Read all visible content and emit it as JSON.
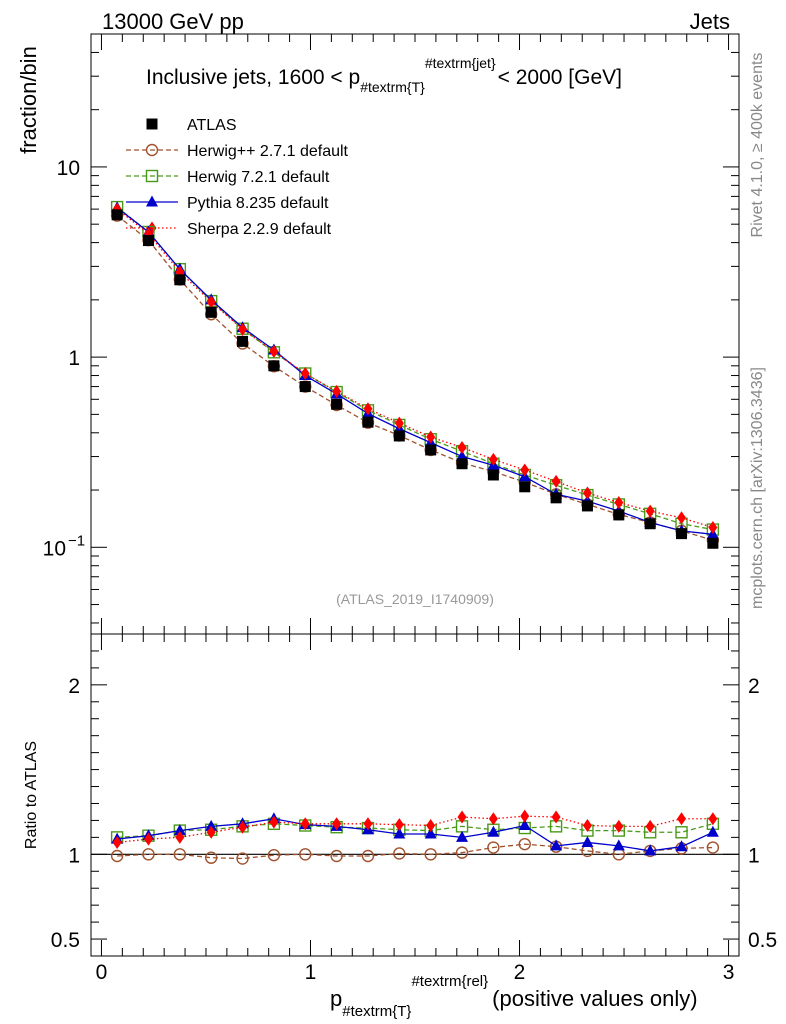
{
  "header": {
    "left": "13000 GeV pp",
    "right": "Jets"
  },
  "side": {
    "rivet": "Rivet 4.1.0, ≥ 400k events",
    "mcplots": "mcplots.cern.ch [arXiv:1306.3436]"
  },
  "chart_data": [
    {
      "type": "line",
      "title": "Inclusive jets, 1600 < p#textrm{T}#textrm{jet} < 2000 [GeV]",
      "title_parts": {
        "prefix": "Inclusive jets, 1600 < p",
        "sub": "#textrm{T}",
        "sup": "#textrm{jet}",
        "suffix": "< 2000 [GeV]"
      },
      "ylabel": "fraction/bin",
      "yscale": "log",
      "ylim": [
        0.035,
        50
      ],
      "xlim": [
        -0.05,
        3.05
      ],
      "y_ticklabels": [
        "10",
        "1",
        "10"
      ],
      "y_tick_exponent": "−1",
      "watermark": "(ATLAS_2019_I1740909)",
      "x": [
        0.075,
        0.225,
        0.375,
        0.525,
        0.675,
        0.825,
        0.975,
        1.125,
        1.275,
        1.425,
        1.575,
        1.725,
        1.875,
        2.025,
        2.175,
        2.325,
        2.475,
        2.625,
        2.775,
        2.925
      ],
      "series": [
        {
          "name": "ATLAS",
          "color": "#000000",
          "marker": "square-filled",
          "values": [
            5.6,
            4.1,
            2.55,
            1.72,
            1.21,
            0.9,
            0.7,
            0.565,
            0.455,
            0.385,
            0.325,
            0.275,
            0.24,
            0.208,
            0.182,
            0.165,
            0.148,
            0.133,
            0.118,
            0.105
          ]
        },
        {
          "name": "Herwig++ 2.7.1 default",
          "color": "#a0522d",
          "marker": "circle-open",
          "dash": "5,3",
          "values": [
            5.55,
            4.12,
            2.56,
            1.68,
            1.18,
            0.895,
            0.7,
            0.56,
            0.452,
            0.387,
            0.325,
            0.278,
            0.25,
            0.22,
            0.19,
            0.168,
            0.149,
            0.135,
            0.122,
            0.109
          ]
        },
        {
          "name": "Herwig 7.2.1 default",
          "color": "#4a9a1a",
          "marker": "square-open",
          "dash": "5,3",
          "values": [
            6.15,
            4.55,
            2.9,
            1.97,
            1.41,
            1.06,
            0.82,
            0.655,
            0.525,
            0.44,
            0.37,
            0.32,
            0.275,
            0.24,
            0.212,
            0.188,
            0.168,
            0.15,
            0.133,
            0.124
          ]
        },
        {
          "name": "Pythia 8.235 default",
          "color": "#0000cc",
          "marker": "triangle-filled",
          "values": [
            6.1,
            4.55,
            2.9,
            2.0,
            1.43,
            1.09,
            0.8,
            0.64,
            0.505,
            0.42,
            0.355,
            0.3,
            0.27,
            0.235,
            0.19,
            0.175,
            0.155,
            0.135,
            0.122,
            0.117
          ]
        },
        {
          "name": "Sherpa 2.2.9 default",
          "color": "#ff0000",
          "marker": "diamond-filled",
          "dash": "1.5,2.5",
          "values": [
            6.0,
            4.45,
            2.8,
            1.95,
            1.4,
            1.07,
            0.82,
            0.66,
            0.535,
            0.45,
            0.38,
            0.335,
            0.29,
            0.255,
            0.222,
            0.193,
            0.172,
            0.155,
            0.143,
            0.127
          ]
        }
      ]
    },
    {
      "type": "line",
      "ylabel": "Ratio to ATLAS",
      "ylim": [
        0.4,
        2.3
      ],
      "y_ticks": [
        0.5,
        1,
        2
      ],
      "y_ticklabels": [
        "0.5",
        "1",
        "2"
      ],
      "xlabel": "p#textrm{T}#textrm{rel} (positive values only)",
      "xlabel_parts": {
        "prefix": "p",
        "sub": "#textrm{T}",
        "sup": "#textrm{rel}",
        "suffix": "(positive values only)"
      },
      "x_ticks": [
        0,
        1,
        2,
        3
      ],
      "x_ticklabels": [
        "0",
        "1",
        "2",
        "3"
      ],
      "x": [
        0.075,
        0.225,
        0.375,
        0.525,
        0.675,
        0.825,
        0.975,
        1.125,
        1.275,
        1.425,
        1.575,
        1.725,
        1.875,
        2.025,
        2.175,
        2.325,
        2.475,
        2.625,
        2.775,
        2.925
      ],
      "series": [
        {
          "name": "Herwig++ 2.7.1 default",
          "color": "#a0522d",
          "marker": "circle-open",
          "dash": "5,3",
          "values": [
            0.99,
            1.0,
            1.0,
            0.98,
            0.975,
            0.995,
            1.0,
            0.99,
            0.99,
            1.005,
            1.0,
            1.01,
            1.04,
            1.06,
            1.045,
            1.02,
            1.0,
            1.02,
            1.035,
            1.04
          ]
        },
        {
          "name": "Herwig 7.2.1 default",
          "color": "#4a9a1a",
          "marker": "square-open",
          "dash": "5,3",
          "values": [
            1.1,
            1.11,
            1.14,
            1.145,
            1.165,
            1.18,
            1.17,
            1.16,
            1.155,
            1.145,
            1.14,
            1.165,
            1.145,
            1.155,
            1.165,
            1.14,
            1.14,
            1.13,
            1.13,
            1.18
          ]
        },
        {
          "name": "Pythia 8.235 default",
          "color": "#0000cc",
          "marker": "triangle-filled",
          "values": [
            1.09,
            1.11,
            1.14,
            1.165,
            1.18,
            1.21,
            1.175,
            1.165,
            1.145,
            1.12,
            1.12,
            1.1,
            1.13,
            1.17,
            1.05,
            1.07,
            1.05,
            1.02,
            1.045,
            1.13
          ]
        },
        {
          "name": "Sherpa 2.2.9 default",
          "color": "#ff0000",
          "marker": "diamond-filled",
          "dash": "1.5,2.5",
          "values": [
            1.07,
            1.09,
            1.1,
            1.13,
            1.16,
            1.19,
            1.18,
            1.18,
            1.18,
            1.175,
            1.17,
            1.22,
            1.21,
            1.225,
            1.22,
            1.17,
            1.165,
            1.165,
            1.21,
            1.21
          ]
        }
      ]
    }
  ]
}
